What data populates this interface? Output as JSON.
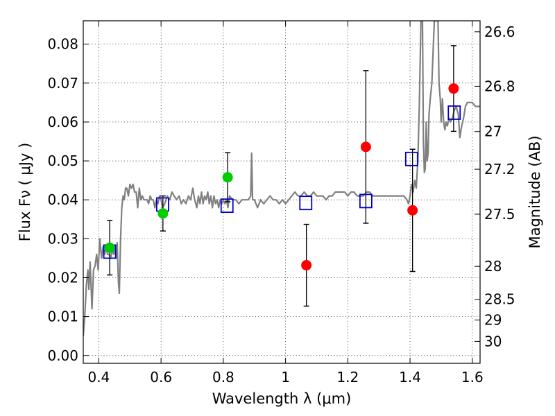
{
  "chart_data": {
    "type": "scatter",
    "xlabel": "Wavelength  λ (μm)",
    "ylabel": "Flux  Fν  ( μJy )",
    "y2label": "Magnitude (AB)",
    "xlim": [
      0.35,
      1.625
    ],
    "ylim": [
      -0.002,
      0.086
    ],
    "grid": true,
    "x_ticks": [
      0.4,
      0.6,
      0.8,
      1.0,
      1.2,
      1.4,
      1.6
    ],
    "x_tick_labels": [
      "0.4",
      "0.6",
      "0.8",
      "1",
      "1.2",
      "1.4",
      "1.6"
    ],
    "y_ticks": [
      0.0,
      0.01,
      0.02,
      0.03,
      0.04,
      0.05,
      0.06,
      0.07,
      0.08
    ],
    "y_tick_labels": [
      "0.00",
      "0.01",
      "0.02",
      "0.03",
      "0.04",
      "0.05",
      "0.06",
      "0.07",
      "0.08"
    ],
    "magnitude_ticks": [
      {
        "label": "26.6",
        "mag": 26.6
      },
      {
        "label": "26.8",
        "mag": 26.8
      },
      {
        "label": "27",
        "mag": 27.0
      },
      {
        "label": "27.2",
        "mag": 27.2
      },
      {
        "label": "27.5",
        "mag": 27.5
      },
      {
        "label": "28",
        "mag": 28.0
      },
      {
        "label": "28.5",
        "mag": 28.5
      },
      {
        "label": "29",
        "mag": 29.0
      },
      {
        "label": "30",
        "mag": 30.0
      }
    ],
    "series": [
      {
        "kind": "line",
        "color": "#808080",
        "points": [
          [
            0.35,
            0.005
          ],
          [
            0.355,
            0.01
          ],
          [
            0.36,
            0.018
          ],
          [
            0.365,
            0.022
          ],
          [
            0.368,
            0.017
          ],
          [
            0.372,
            0.024
          ],
          [
            0.378,
            0.012
          ],
          [
            0.383,
            0.022
          ],
          [
            0.388,
            0.023
          ],
          [
            0.393,
            0.026
          ],
          [
            0.398,
            0.022
          ],
          [
            0.403,
            0.03
          ],
          [
            0.409,
            0.025
          ],
          [
            0.414,
            0.028
          ],
          [
            0.419,
            0.026
          ],
          [
            0.423,
            0.028
          ],
          [
            0.428,
            0.026
          ],
          [
            0.433,
            0.026
          ],
          [
            0.438,
            0.025
          ],
          [
            0.443,
            0.027
          ],
          [
            0.448,
            0.026
          ],
          [
            0.453,
            0.028
          ],
          [
            0.456,
            0.025
          ],
          [
            0.459,
            0.029
          ],
          [
            0.463,
            0.019
          ],
          [
            0.466,
            0.016
          ],
          [
            0.47,
            0.03
          ],
          [
            0.474,
            0.038
          ],
          [
            0.478,
            0.041
          ],
          [
            0.482,
            0.04
          ],
          [
            0.486,
            0.043
          ],
          [
            0.49,
            0.043
          ],
          [
            0.495,
            0.041
          ],
          [
            0.5,
            0.044
          ],
          [
            0.505,
            0.043
          ],
          [
            0.51,
            0.044
          ],
          [
            0.515,
            0.042
          ],
          [
            0.52,
            0.042
          ],
          [
            0.525,
            0.038
          ],
          [
            0.53,
            0.043
          ],
          [
            0.535,
            0.04
          ],
          [
            0.54,
            0.041
          ],
          [
            0.545,
            0.04
          ],
          [
            0.55,
            0.04
          ],
          [
            0.555,
            0.04
          ],
          [
            0.56,
            0.039
          ],
          [
            0.565,
            0.041
          ],
          [
            0.57,
            0.04
          ],
          [
            0.575,
            0.04
          ],
          [
            0.58,
            0.038
          ],
          [
            0.585,
            0.04
          ],
          [
            0.59,
            0.039
          ],
          [
            0.595,
            0.041
          ],
          [
            0.6,
            0.04
          ],
          [
            0.605,
            0.038
          ],
          [
            0.612,
            0.039
          ],
          [
            0.62,
            0.041
          ],
          [
            0.628,
            0.04
          ],
          [
            0.635,
            0.042
          ],
          [
            0.642,
            0.041
          ],
          [
            0.65,
            0.04
          ],
          [
            0.658,
            0.041
          ],
          [
            0.665,
            0.039
          ],
          [
            0.672,
            0.04
          ],
          [
            0.68,
            0.039
          ],
          [
            0.688,
            0.041
          ],
          [
            0.695,
            0.04
          ],
          [
            0.702,
            0.043
          ],
          [
            0.708,
            0.04
          ],
          [
            0.715,
            0.038
          ],
          [
            0.72,
            0.041
          ],
          [
            0.725,
            0.039
          ],
          [
            0.73,
            0.042
          ],
          [
            0.735,
            0.039
          ],
          [
            0.74,
            0.041
          ],
          [
            0.745,
            0.04
          ],
          [
            0.75,
            0.042
          ],
          [
            0.755,
            0.039
          ],
          [
            0.76,
            0.041
          ],
          [
            0.765,
            0.038
          ],
          [
            0.77,
            0.041
          ],
          [
            0.775,
            0.039
          ],
          [
            0.78,
            0.04
          ],
          [
            0.785,
            0.038
          ],
          [
            0.79,
            0.04
          ],
          [
            0.795,
            0.039
          ],
          [
            0.8,
            0.04
          ],
          [
            0.805,
            0.039
          ],
          [
            0.81,
            0.04
          ],
          [
            0.815,
            0.038
          ],
          [
            0.82,
            0.041
          ],
          [
            0.83,
            0.04
          ],
          [
            0.84,
            0.04
          ],
          [
            0.85,
            0.039
          ],
          [
            0.86,
            0.04
          ],
          [
            0.87,
            0.04
          ],
          [
            0.88,
            0.04
          ],
          [
            0.888,
            0.041
          ],
          [
            0.891,
            0.052
          ],
          [
            0.894,
            0.04
          ],
          [
            0.9,
            0.04
          ],
          [
            0.91,
            0.038
          ],
          [
            0.92,
            0.04
          ],
          [
            0.93,
            0.039
          ],
          [
            0.94,
            0.04
          ],
          [
            0.95,
            0.041
          ],
          [
            0.96,
            0.04
          ],
          [
            0.97,
            0.04
          ],
          [
            0.98,
            0.039
          ],
          [
            0.99,
            0.04
          ],
          [
            1.0,
            0.039
          ],
          [
            1.01,
            0.04
          ],
          [
            1.02,
            0.041
          ],
          [
            1.03,
            0.042
          ],
          [
            1.04,
            0.041
          ],
          [
            1.05,
            0.041
          ],
          [
            1.06,
            0.042
          ],
          [
            1.07,
            0.041
          ],
          [
            1.08,
            0.041
          ],
          [
            1.09,
            0.042
          ],
          [
            1.1,
            0.041
          ],
          [
            1.11,
            0.041
          ],
          [
            1.12,
            0.041
          ],
          [
            1.13,
            0.04
          ],
          [
            1.14,
            0.041
          ],
          [
            1.15,
            0.041
          ],
          [
            1.16,
            0.042
          ],
          [
            1.17,
            0.042
          ],
          [
            1.18,
            0.042
          ],
          [
            1.19,
            0.042
          ],
          [
            1.2,
            0.041
          ],
          [
            1.21,
            0.042
          ],
          [
            1.22,
            0.042
          ],
          [
            1.23,
            0.041
          ],
          [
            1.24,
            0.041
          ],
          [
            1.25,
            0.041
          ],
          [
            1.26,
            0.042
          ],
          [
            1.27,
            0.042
          ],
          [
            1.28,
            0.041
          ],
          [
            1.29,
            0.041
          ],
          [
            1.3,
            0.041
          ],
          [
            1.31,
            0.041
          ],
          [
            1.32,
            0.041
          ],
          [
            1.33,
            0.041
          ],
          [
            1.34,
            0.041
          ],
          [
            1.35,
            0.041
          ],
          [
            1.36,
            0.041
          ],
          [
            1.37,
            0.041
          ],
          [
            1.38,
            0.041
          ],
          [
            1.39,
            0.04
          ],
          [
            1.395,
            0.039
          ],
          [
            1.4,
            0.041
          ],
          [
            1.405,
            0.044
          ],
          [
            1.41,
            0.042
          ],
          [
            1.415,
            0.045
          ],
          [
            1.42,
            0.043
          ],
          [
            1.425,
            0.05
          ],
          [
            1.43,
            0.065
          ],
          [
            1.435,
            0.086
          ],
          [
            1.44,
            0.086
          ],
          [
            1.443,
            0.055
          ],
          [
            1.446,
            0.047
          ],
          [
            1.449,
            0.048
          ],
          [
            1.452,
            0.06
          ],
          [
            1.455,
            0.05
          ],
          [
            1.458,
            0.052
          ],
          [
            1.461,
            0.062
          ],
          [
            1.465,
            0.066
          ],
          [
            1.47,
            0.07
          ],
          [
            1.475,
            0.08
          ],
          [
            1.478,
            0.086
          ],
          [
            1.49,
            0.086
          ],
          [
            1.493,
            0.07
          ],
          [
            1.497,
            0.066
          ],
          [
            1.5,
            0.06
          ],
          [
            1.504,
            0.066
          ],
          [
            1.508,
            0.06
          ],
          [
            1.512,
            0.058
          ],
          [
            1.516,
            0.06
          ],
          [
            1.52,
            0.059
          ],
          [
            1.525,
            0.061
          ],
          [
            1.53,
            0.06
          ],
          [
            1.536,
            0.061
          ],
          [
            1.542,
            0.063
          ],
          [
            1.548,
            0.064
          ],
          [
            1.555,
            0.062
          ],
          [
            1.56,
            0.056
          ],
          [
            1.566,
            0.059
          ],
          [
            1.572,
            0.061
          ],
          [
            1.578,
            0.064
          ],
          [
            1.584,
            0.065
          ],
          [
            1.592,
            0.065
          ],
          [
            1.6,
            0.065
          ],
          [
            1.61,
            0.064
          ],
          [
            1.62,
            0.064
          ],
          [
            1.625,
            0.064
          ]
        ]
      },
      {
        "kind": "model-squares",
        "color": "#0000cc",
        "points": [
          [
            0.435,
            0.0267
          ],
          [
            0.605,
            0.0388
          ],
          [
            0.812,
            0.0385
          ],
          [
            1.065,
            0.0392
          ],
          [
            1.258,
            0.0397
          ],
          [
            1.405,
            0.0505
          ],
          [
            1.542,
            0.0624
          ]
        ]
      },
      {
        "kind": "points",
        "color": "#00cc00",
        "points": [
          {
            "x": 0.435,
            "y": 0.0277,
            "err": 0.007
          },
          {
            "x": 0.606,
            "y": 0.0365,
            "err": 0.0045
          },
          {
            "x": 0.814,
            "y": 0.0458,
            "err": 0.0063
          }
        ]
      },
      {
        "kind": "points",
        "color": "#ff0000",
        "points": [
          {
            "x": 1.067,
            "y": 0.0232,
            "err": 0.0105
          },
          {
            "x": 1.258,
            "y": 0.0536,
            "err": 0.0196
          },
          {
            "x": 1.408,
            "y": 0.0373,
            "err": 0.0157
          },
          {
            "x": 1.54,
            "y": 0.0686,
            "err": 0.011
          }
        ]
      }
    ]
  }
}
